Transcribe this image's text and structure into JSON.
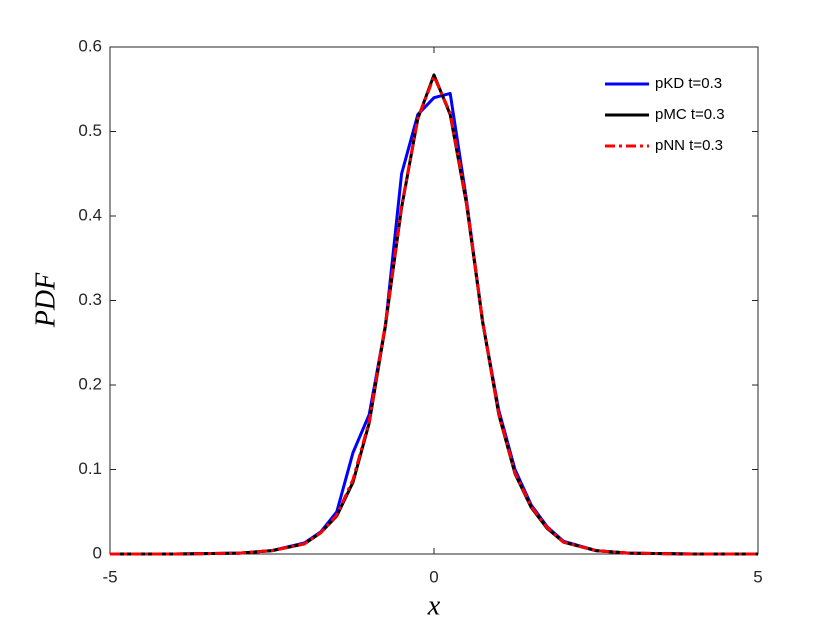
{
  "chart_data": {
    "type": "line",
    "x": [
      -5,
      -4,
      -3,
      -2.5,
      -2,
      -1.75,
      -1.5,
      -1.25,
      -1,
      -0.75,
      -0.5,
      -0.25,
      0,
      0.25,
      0.5,
      0.75,
      1,
      1.25,
      1.5,
      1.75,
      2,
      2.5,
      3,
      4,
      5
    ],
    "series": [
      {
        "name": "pKD t=0.3",
        "color": "#0000ff",
        "dash": "solid",
        "values": [
          0,
          0,
          0.001,
          0.004,
          0.013,
          0.026,
          0.05,
          0.12,
          0.165,
          0.27,
          0.45,
          0.52,
          0.54,
          0.545,
          0.42,
          0.275,
          0.17,
          0.1,
          0.058,
          0.032,
          0.015,
          0.004,
          0.001,
          0,
          0
        ]
      },
      {
        "name": "pMC t=0.3",
        "color": "#000000",
        "dash": "solid",
        "values": [
          0,
          0,
          0.001,
          0.004,
          0.012,
          0.025,
          0.045,
          0.085,
          0.155,
          0.27,
          0.41,
          0.515,
          0.567,
          0.52,
          0.415,
          0.275,
          0.165,
          0.095,
          0.055,
          0.03,
          0.014,
          0.004,
          0.001,
          0,
          0
        ]
      },
      {
        "name": "pNN t=0.3",
        "color": "#ff0000",
        "dash": "dashdot",
        "values": [
          0,
          0,
          0.001,
          0.004,
          0.012,
          0.025,
          0.046,
          0.088,
          0.157,
          0.272,
          0.412,
          0.515,
          0.565,
          0.522,
          0.417,
          0.276,
          0.166,
          0.096,
          0.056,
          0.031,
          0.014,
          0.004,
          0.001,
          0,
          0
        ]
      }
    ],
    "x_label": "x",
    "y_label": "PDF",
    "xlim": [
      -5,
      5
    ],
    "xticks": [
      -5,
      0,
      5
    ],
    "ylim": [
      0,
      0.6
    ],
    "yticks": [
      0,
      0.1,
      0.2,
      0.3,
      0.4,
      0.5,
      0.6
    ],
    "grid": false,
    "legend": "top-right"
  }
}
